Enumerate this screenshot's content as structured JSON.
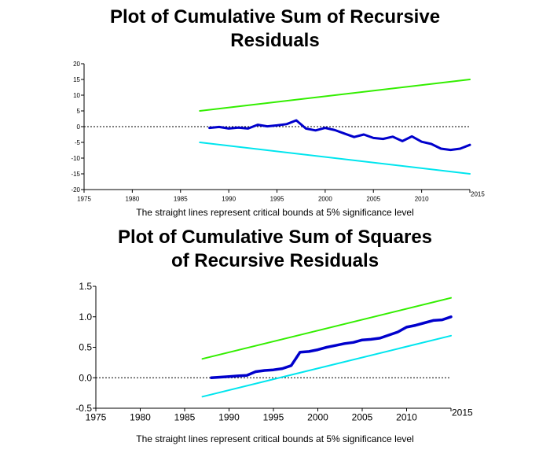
{
  "charts": [
    {
      "title_line1": "Plot of Cumulative Sum of Recursive",
      "title_line2": "Residuals",
      "note": "The straight lines represent critical bounds at 5% significance level"
    },
    {
      "title_line1": "Plot of Cumulative Sum of Squares",
      "title_line2": "of Recursive Residuals",
      "note": "The straight lines represent critical bounds at 5% significance level"
    }
  ],
  "chart_data": [
    {
      "type": "line",
      "title": "Plot of Cumulative Sum of Recursive Residuals",
      "xlabel": "",
      "ylabel": "",
      "xlim": [
        1975,
        2015
      ],
      "ylim": [
        -20,
        20
      ],
      "x_ticks": [
        1975,
        1980,
        1985,
        1990,
        1995,
        2000,
        2005,
        2010,
        2015
      ],
      "y_ticks": [
        -20,
        -15,
        -10,
        -5,
        0,
        5,
        10,
        15,
        20
      ],
      "zero_line": "dotted",
      "grid": false,
      "colors": {
        "series": "#0000cc",
        "upper": "#33ee00",
        "lower": "#00e5ee",
        "axis": "#000000"
      },
      "series": [
        {
          "x": [
            1988,
            1989,
            1990,
            1991,
            1992,
            1993,
            1994,
            1995,
            1996,
            1997,
            1998,
            1999,
            2000,
            2001,
            2002,
            2003,
            2004,
            2005,
            2006,
            2007,
            2008,
            2009,
            2010,
            2011,
            2012,
            2013,
            2014,
            2015
          ],
          "y": [
            -0.4,
            -0.1,
            -0.6,
            -0.3,
            -0.6,
            0.6,
            0.1,
            0.4,
            0.8,
            2.0,
            -0.6,
            -1.2,
            -0.4,
            -1.1,
            -2.2,
            -3.3,
            -2.5,
            -3.6,
            -3.9,
            -3.2,
            -4.6,
            -3.1,
            -4.8,
            -5.5,
            -7.0,
            -7.4,
            -7.0,
            -5.8
          ]
        },
        {
          "x": [
            1987,
            2015
          ],
          "y": [
            5,
            15
          ]
        },
        {
          "x": [
            1987,
            2015
          ],
          "y": [
            -5,
            -15
          ]
        }
      ]
    },
    {
      "type": "line",
      "title": "Plot of Cumulative Sum of Squares of Recursive Residuals",
      "xlabel": "",
      "ylabel": "",
      "xlim": [
        1975,
        2015
      ],
      "ylim": [
        -0.5,
        1.5
      ],
      "x_ticks": [
        1975,
        1980,
        1985,
        1990,
        1995,
        2000,
        2005,
        2010,
        2015
      ],
      "y_ticks": [
        -0.5,
        0.0,
        0.5,
        1.0,
        1.5
      ],
      "y_tick_labels": [
        "-0.5",
        "0.0",
        "0.5",
        "1.0",
        "1.5"
      ],
      "zero_line": "dotted",
      "grid": false,
      "colors": {
        "series": "#0000cc",
        "upper": "#33ee00",
        "lower": "#00e5ee",
        "axis": "#000000"
      },
      "series": [
        {
          "x": [
            1988,
            1989,
            1990,
            1991,
            1992,
            1993,
            1994,
            1995,
            1996,
            1997,
            1998,
            1999,
            2000,
            2001,
            2002,
            2003,
            2004,
            2005,
            2006,
            2007,
            2008,
            2009,
            2010,
            2011,
            2012,
            2013,
            2014,
            2015
          ],
          "y": [
            0.0,
            0.01,
            0.02,
            0.03,
            0.04,
            0.1,
            0.12,
            0.13,
            0.15,
            0.2,
            0.42,
            0.43,
            0.46,
            0.5,
            0.53,
            0.56,
            0.58,
            0.62,
            0.63,
            0.65,
            0.7,
            0.75,
            0.83,
            0.86,
            0.9,
            0.94,
            0.95,
            1.0
          ]
        },
        {
          "x": [
            1987,
            2015
          ],
          "y": [
            0.31,
            1.31
          ]
        },
        {
          "x": [
            1987,
            2015
          ],
          "y": [
            -0.31,
            0.69
          ]
        }
      ]
    }
  ]
}
